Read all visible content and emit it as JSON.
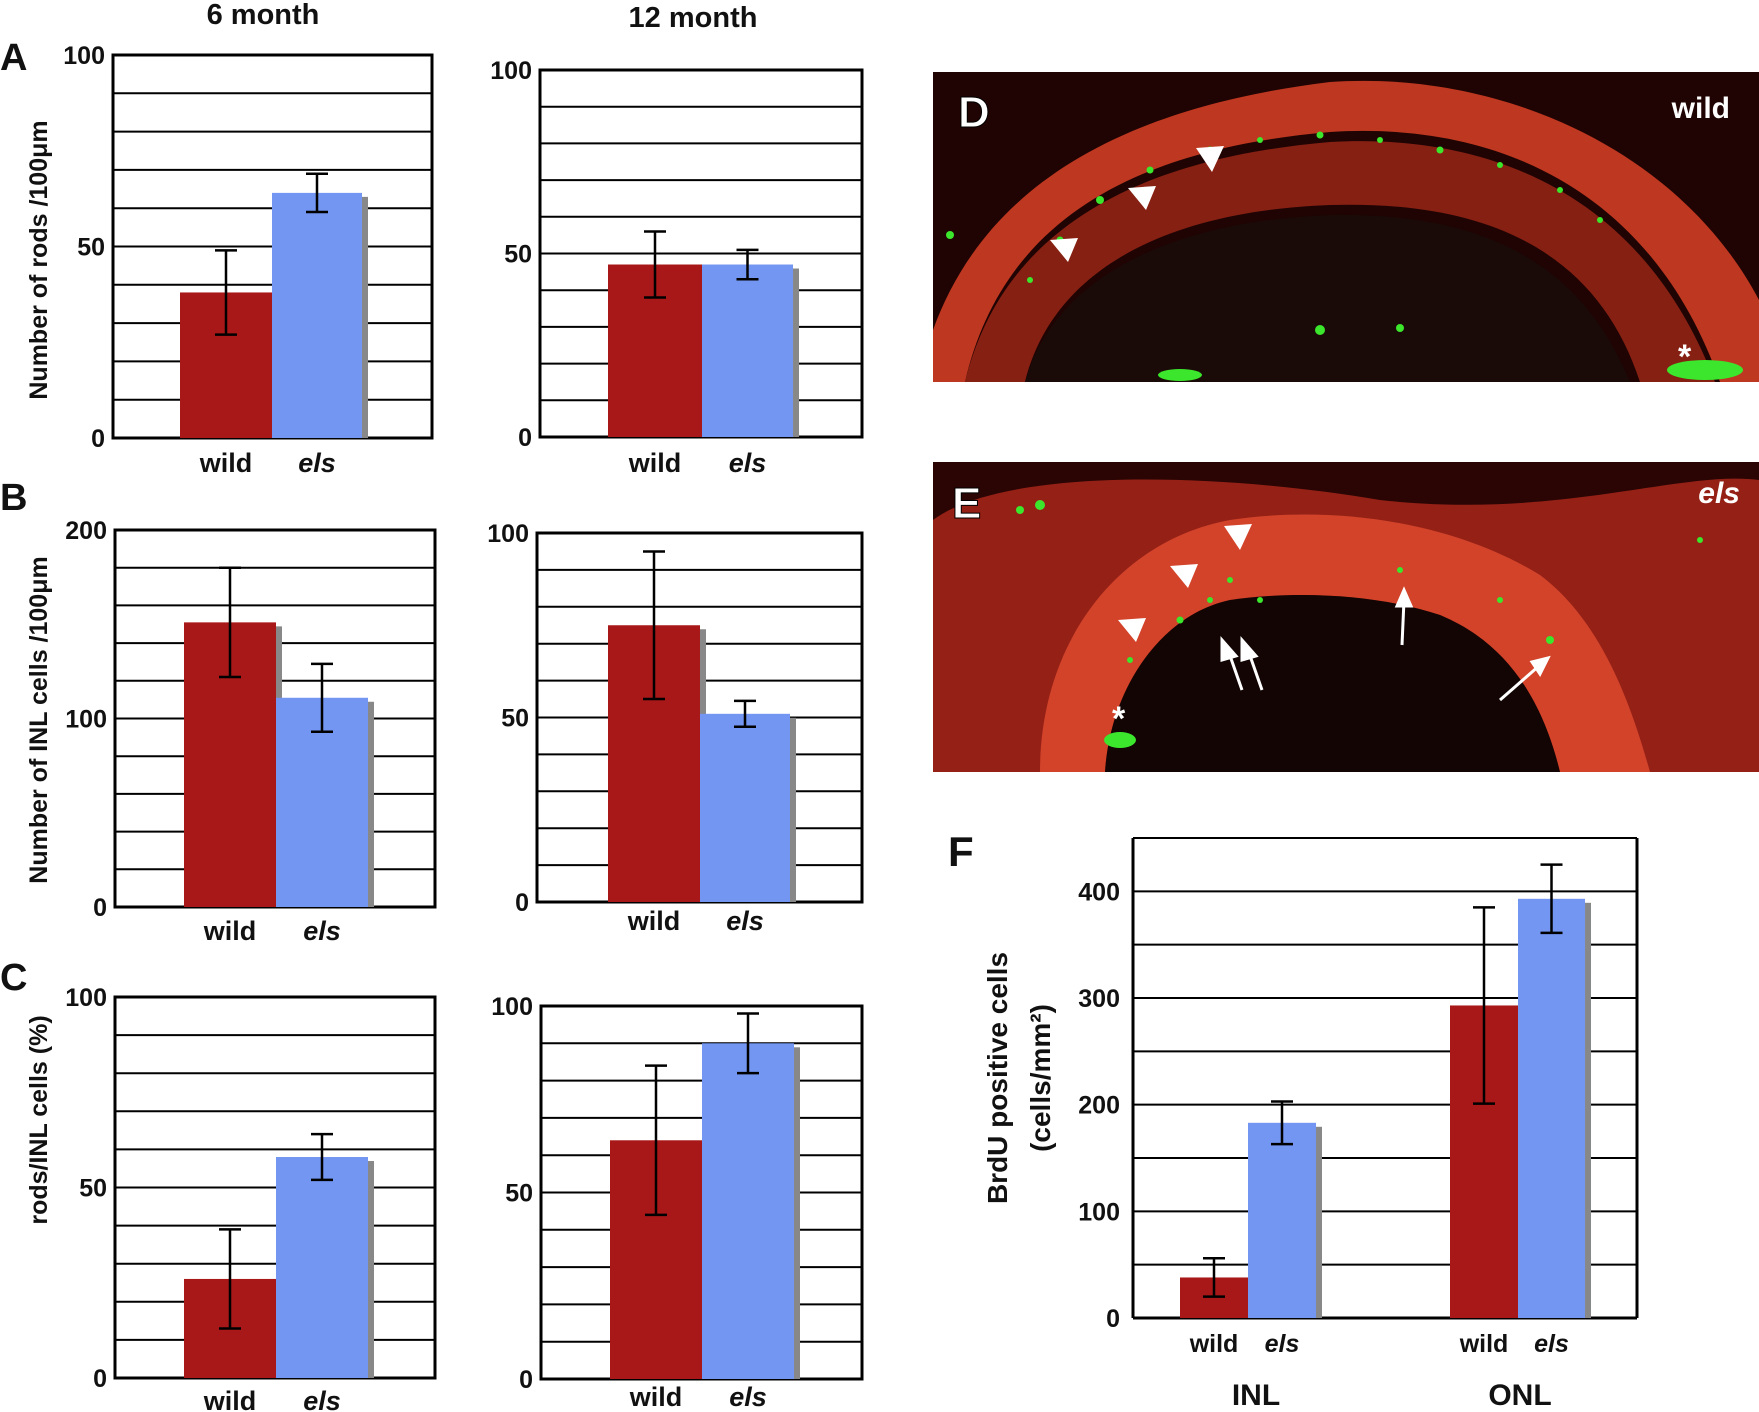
{
  "column_titles": {
    "six_month": "6 month",
    "twelve_month": "12 month"
  },
  "panel_letters": {
    "A": "A",
    "B": "B",
    "C": "C",
    "D": "D",
    "E": "E",
    "F": "F"
  },
  "row_ylabels": {
    "A": "Number of rods /100μm",
    "B": "Number of INL cells /100μm",
    "C": "rods/INL cells (%)"
  },
  "colors": {
    "wild": "#a81818",
    "els": "#7396f2",
    "shadow": "#888888",
    "micro_bg": "#2a0504",
    "micro_tissue": "#c0291a",
    "micro_label": "#3be62c"
  },
  "micro": {
    "D": {
      "label": "wild"
    },
    "E": {
      "label": "els"
    }
  },
  "chart_data": [
    {
      "id": "A6",
      "type": "bar",
      "categories": [
        "wild",
        "els"
      ],
      "values": [
        38,
        64
      ],
      "errors": [
        11,
        5
      ],
      "ylim": [
        0,
        100
      ],
      "yticks": [
        0,
        50,
        100
      ],
      "ylabel": "Number of rods /100μm"
    },
    {
      "id": "A12",
      "type": "bar",
      "categories": [
        "wild",
        "els"
      ],
      "values": [
        47,
        47
      ],
      "errors": [
        9,
        4
      ],
      "ylim": [
        0,
        100
      ],
      "yticks": [
        0,
        50,
        100
      ]
    },
    {
      "id": "B6",
      "type": "bar",
      "categories": [
        "wild",
        "els"
      ],
      "values": [
        151,
        111
      ],
      "errors": [
        29,
        18
      ],
      "ylim": [
        0,
        200
      ],
      "yticks": [
        0,
        100,
        200
      ],
      "ylabel": "Number of INL cells /100μm"
    },
    {
      "id": "B12",
      "type": "bar",
      "categories": [
        "wild",
        "els"
      ],
      "values": [
        75,
        51
      ],
      "errors": [
        20,
        3.5
      ],
      "ylim": [
        0,
        100
      ],
      "yticks": [
        0,
        50,
        100
      ]
    },
    {
      "id": "C6",
      "type": "bar",
      "categories": [
        "wild",
        "els"
      ],
      "values": [
        26,
        58
      ],
      "errors": [
        13,
        6
      ],
      "ylim": [
        0,
        100
      ],
      "yticks": [
        0,
        50,
        100
      ],
      "ylabel": "rods/INL cells (%)"
    },
    {
      "id": "C12",
      "type": "bar",
      "categories": [
        "wild",
        "els"
      ],
      "values": [
        64,
        90
      ],
      "errors": [
        20,
        8
      ],
      "ylim": [
        0,
        100
      ],
      "yticks": [
        0,
        50,
        100
      ]
    },
    {
      "id": "F",
      "type": "bar",
      "groups": [
        "INL",
        "ONL"
      ],
      "categories": [
        "wild",
        "els"
      ],
      "series": [
        {
          "name": "wild",
          "values": [
            38,
            293
          ]
        },
        {
          "name": "els",
          "values": [
            183,
            393
          ]
        }
      ],
      "errors": {
        "wild": [
          18,
          92
        ],
        "els": [
          20,
          32
        ]
      },
      "ylim": [
        0,
        450
      ],
      "yticks": [
        0,
        100,
        200,
        300,
        400
      ],
      "ylabel": "BrdU positive cells",
      "ylabel2": "(cells/mm²)"
    }
  ]
}
